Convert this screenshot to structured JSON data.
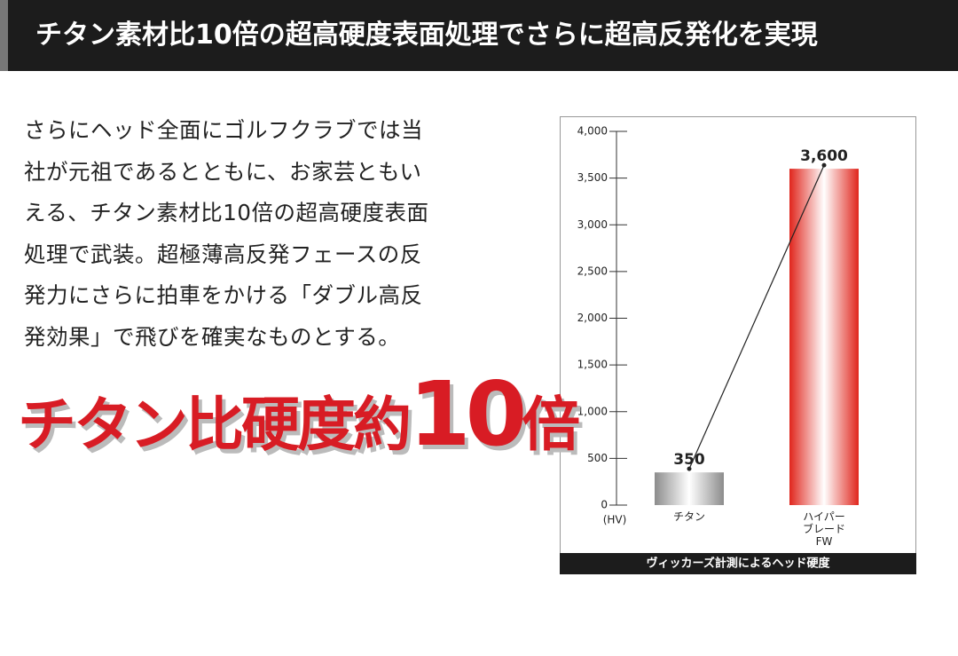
{
  "header": {
    "title": "チタン素材比10倍の超高硬度表面処理でさらに超高反発化を実現"
  },
  "body": {
    "paragraph_lines": [
      "さらにヘッド全面にゴルフクラブでは当",
      "社が元祖であるとともに、お家芸ともい",
      "える、チタン素材比10倍の超高硬度表面",
      "処理で武装。超極薄高反発フェースの反",
      "発力にさらに拍車をかける「ダブル高反",
      "発効果」で飛びを確実なものとする。"
    ],
    "headline": {
      "before": "チタン比硬度約",
      "number": "10",
      "after": "倍"
    }
  },
  "chart_data": {
    "type": "bar",
    "caption": "ヴィッカーズ計測によるヘッド硬度",
    "y_unit": "(HV)",
    "categories": [
      "チタン",
      "ハイパー\nブレード\nFW"
    ],
    "values": [
      350,
      3600
    ],
    "value_labels": [
      "350",
      "3,600"
    ],
    "colors": [
      "#8c8c8c",
      "#e0261d"
    ],
    "ylim": [
      0,
      4000
    ],
    "yticks": [
      0,
      500,
      {
        "value": 1000,
        "label": "1,000"
      },
      {
        "value": 1500,
        "label": "1,500"
      },
      {
        "value": 2000,
        "label": "2,000"
      },
      {
        "value": 2500,
        "label": "2,500"
      },
      {
        "value": 3000,
        "label": "3,000"
      },
      {
        "value": 3500,
        "label": "3,500"
      },
      {
        "value": 4000,
        "label": "4,000"
      }
    ]
  }
}
